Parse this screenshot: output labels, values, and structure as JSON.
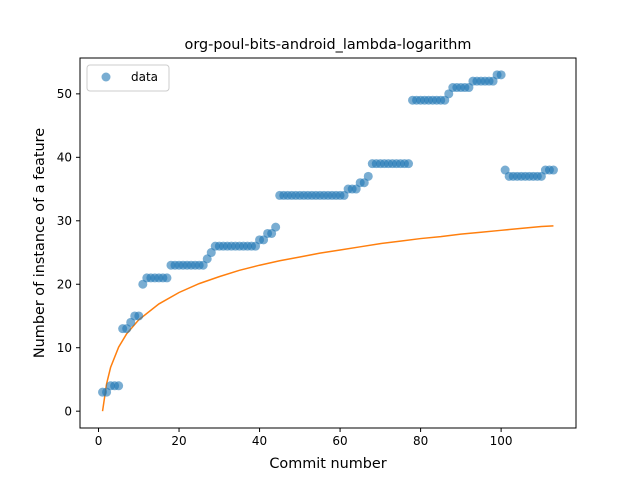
{
  "chart_data": {
    "type": "scatter",
    "title": "org-poul-bits-android_lambda-logarithm",
    "xlabel": "Commit number",
    "ylabel": "Number of instance of a feature",
    "xlim": [
      -4.6,
      118.6
    ],
    "ylim": [
      -2.65,
      55.65
    ],
    "xticks": [
      0,
      20,
      40,
      60,
      80,
      100
    ],
    "yticks": [
      0,
      10,
      20,
      30,
      40,
      50
    ],
    "legend": {
      "position": "top-left",
      "entries": [
        "data"
      ]
    },
    "colors": {
      "data": "#1f77b4",
      "fit": "#ff7f0e"
    },
    "series": [
      {
        "name": "data",
        "kind": "scatter",
        "x": [
          1,
          2,
          3,
          4,
          5,
          6,
          7,
          8,
          9,
          10,
          11,
          12,
          13,
          14,
          15,
          16,
          17,
          18,
          19,
          20,
          21,
          22,
          23,
          24,
          25,
          26,
          27,
          28,
          29,
          30,
          31,
          32,
          33,
          34,
          35,
          36,
          37,
          38,
          39,
          40,
          41,
          42,
          43,
          44,
          45,
          46,
          47,
          48,
          49,
          50,
          51,
          52,
          53,
          54,
          55,
          56,
          57,
          58,
          59,
          60,
          61,
          62,
          63,
          64,
          65,
          66,
          67,
          68,
          69,
          70,
          71,
          72,
          73,
          74,
          75,
          76,
          77,
          78,
          79,
          80,
          81,
          82,
          83,
          84,
          85,
          86,
          87,
          88,
          89,
          90,
          91,
          92,
          93,
          94,
          95,
          96,
          97,
          98,
          99,
          100,
          101,
          102,
          103,
          104,
          105,
          106,
          107,
          108,
          109,
          110,
          111,
          112,
          113
        ],
        "y": [
          3,
          3,
          4,
          4,
          4,
          13,
          13,
          14,
          15,
          15,
          20,
          21,
          21,
          21,
          21,
          21,
          21,
          23,
          23,
          23,
          23,
          23,
          23,
          23,
          23,
          23,
          24,
          25,
          26,
          26,
          26,
          26,
          26,
          26,
          26,
          26,
          26,
          26,
          26,
          27,
          27,
          28,
          28,
          29,
          34,
          34,
          34,
          34,
          34,
          34,
          34,
          34,
          34,
          34,
          34,
          34,
          34,
          34,
          34,
          34,
          34,
          35,
          35,
          35,
          36,
          36,
          37,
          39,
          39,
          39,
          39,
          39,
          39,
          39,
          39,
          39,
          39,
          49,
          49,
          49,
          49,
          49,
          49,
          49,
          49,
          49,
          50,
          51,
          51,
          51,
          51,
          51,
          52,
          52,
          52,
          52,
          52,
          52,
          53,
          53,
          38,
          37,
          37,
          37,
          37,
          37,
          37,
          37,
          37,
          37,
          38,
          38,
          38
        ]
      },
      {
        "name": "",
        "kind": "line",
        "model": "logarithm",
        "x": [
          1,
          2,
          3,
          5,
          7,
          10,
          15,
          20,
          25,
          30,
          35,
          40,
          45,
          50,
          55,
          60,
          65,
          70,
          75,
          80,
          85,
          90,
          95,
          100,
          105,
          110,
          113
        ],
        "y": [
          0,
          4.3,
          6.9,
          10.1,
          12.2,
          14.4,
          16.9,
          18.7,
          20.1,
          21.2,
          22.2,
          23.0,
          23.7,
          24.3,
          24.9,
          25.4,
          25.9,
          26.4,
          26.8,
          27.2,
          27.5,
          27.9,
          28.2,
          28.5,
          28.8,
          29.1,
          29.2
        ]
      }
    ]
  }
}
